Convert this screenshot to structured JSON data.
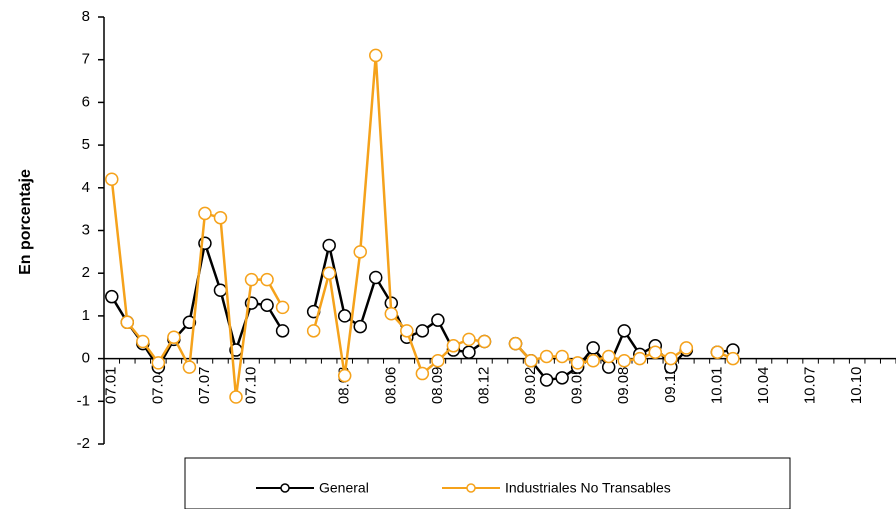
{
  "chart_data": {
    "type": "line",
    "y_axis_label": "En porcentaje",
    "categories": [
      "07.01",
      null,
      null,
      "07.04",
      null,
      null,
      "07.07",
      null,
      null,
      "07.10",
      null,
      null,
      null,
      null,
      null,
      "08.03",
      null,
      null,
      "08.06",
      null,
      null,
      "08.09",
      null,
      null,
      "08.12",
      null,
      null,
      "09.02",
      null,
      null,
      "09.05",
      null,
      null,
      "09.08",
      null,
      null,
      "09.11",
      null,
      null,
      "10.01",
      null,
      null,
      "10.04",
      null,
      null,
      "10.07",
      null,
      null,
      "10.10",
      null,
      null
    ],
    "series": [
      {
        "name": "General",
        "color": "#000000",
        "values": [
          1.45,
          0.85,
          0.35,
          -0.2,
          0.45,
          0.85,
          2.7,
          1.6,
          0.2,
          1.3,
          1.25,
          0.65,
          null,
          1.1,
          2.65,
          1.0,
          0.75,
          1.9,
          1.3,
          0.5,
          0.65,
          0.9,
          0.2,
          0.15,
          0.4,
          null,
          0.35,
          -0.05,
          -0.5,
          -0.45,
          -0.2,
          0.25,
          -0.2,
          0.65,
          0.1,
          0.3,
          -0.2,
          0.2,
          null,
          0.15,
          0.2,
          null,
          null,
          null,
          null,
          null,
          null,
          null,
          null,
          null,
          null
        ]
      },
      {
        "name": "Industriales No Transables",
        "color": "#f5a21b",
        "values": [
          4.2,
          0.85,
          0.4,
          -0.1,
          0.5,
          -0.2,
          3.4,
          3.3,
          -0.9,
          1.85,
          1.85,
          1.2,
          null,
          0.65,
          2.0,
          -0.4,
          2.5,
          7.1,
          1.05,
          0.65,
          -0.35,
          -0.05,
          0.3,
          0.45,
          0.4,
          null,
          0.35,
          -0.05,
          0.05,
          0.05,
          -0.1,
          -0.05,
          0.05,
          -0.05,
          0.0,
          0.15,
          0.0,
          0.25,
          null,
          0.15,
          0.0,
          null,
          null,
          null,
          null,
          null,
          null,
          null,
          null,
          null,
          null
        ]
      }
    ],
    "ylim": [
      -2,
      8
    ],
    "yticks": [
      -2,
      -1,
      0,
      1,
      2,
      3,
      4,
      5,
      6,
      7,
      8
    ],
    "grid": false,
    "legend": "bottom"
  }
}
